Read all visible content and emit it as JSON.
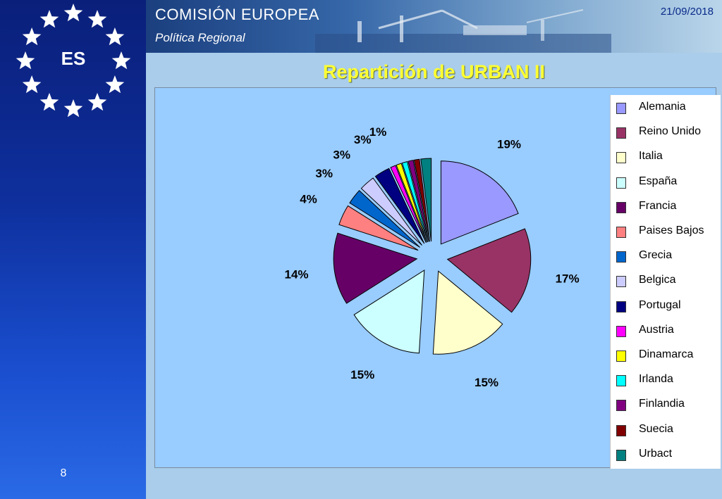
{
  "sidebar": {
    "country_code": "ES",
    "page_number": "8"
  },
  "header": {
    "org_name": "COMISIÓN EUROPEA",
    "org_unit": "Política Regional",
    "date": "21/09/2018"
  },
  "chart_data": {
    "type": "pie",
    "title": "Repartición de URBAN II",
    "legend_position": "right",
    "categories": [
      "Alemania",
      "Reino Unido",
      "Italia",
      "España",
      "Francia",
      "Paises Bajos",
      "Grecia",
      "Belgica",
      "Portugal",
      "Austria",
      "Dinamarca",
      "Irlanda",
      "Finlandia",
      "Suecia",
      "Urbact"
    ],
    "values": [
      19,
      17,
      15,
      15,
      14,
      4,
      3,
      3,
      3,
      1,
      1,
      1,
      1,
      1,
      2
    ],
    "data_labels": [
      "19%",
      "17%",
      "15%",
      "15%",
      "14%",
      "4%",
      "3%",
      "3%",
      "3%",
      "1%",
      "",
      "",
      "",
      "",
      ""
    ],
    "colors": [
      "#9999ff",
      "#993366",
      "#ffffcc",
      "#ccffff",
      "#660066",
      "#ff8080",
      "#0066cc",
      "#ccccff",
      "#000080",
      "#ff00ff",
      "#ffff00",
      "#00ffff",
      "#800080",
      "#800000",
      "#008080"
    ]
  }
}
